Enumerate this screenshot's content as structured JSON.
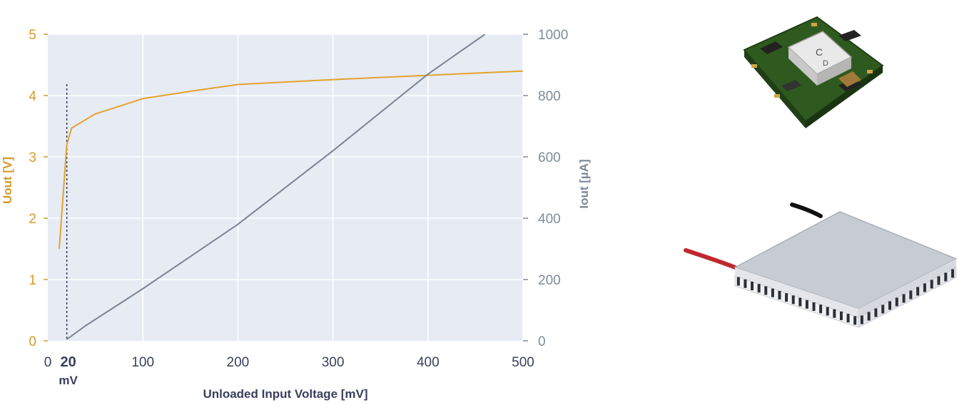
{
  "chart_data": {
    "type": "line",
    "xlabel": "Unloaded Input Voltage [mV]",
    "ylabel_left": "Uout [V]",
    "ylabel_right": "Iout [µA]",
    "xlim": [
      0,
      500
    ],
    "ylim_left": [
      0,
      5
    ],
    "ylim_right": [
      0,
      1000
    ],
    "x_ticks": [
      0,
      100,
      200,
      300,
      400,
      500
    ],
    "y_ticks_left": [
      0,
      1,
      2,
      3,
      4,
      5
    ],
    "y_ticks_right": [
      0,
      200,
      400,
      600,
      800,
      1000
    ],
    "grid": true,
    "marker": {
      "x": 20,
      "value_label": "20",
      "unit_label": "mV"
    },
    "series": [
      {
        "axis": "left",
        "color": "#e3a32e",
        "x": [
          12,
          20,
          25,
          50,
          100,
          150,
          200,
          300,
          400,
          500
        ],
        "y": [
          1.5,
          3.2,
          3.47,
          3.7,
          3.95,
          4.07,
          4.18,
          4.26,
          4.33,
          4.4
        ]
      },
      {
        "axis": "right",
        "color": "#7a8494",
        "x": [
          20,
          40,
          80,
          100,
          200,
          300,
          400,
          460
        ],
        "y": [
          5,
          50,
          130,
          170,
          380,
          620,
          870,
          1000
        ]
      }
    ]
  },
  "photos": [
    {
      "name": "dc-dc-converter-module"
    },
    {
      "name": "peltier-thermoelectric-element"
    }
  ]
}
